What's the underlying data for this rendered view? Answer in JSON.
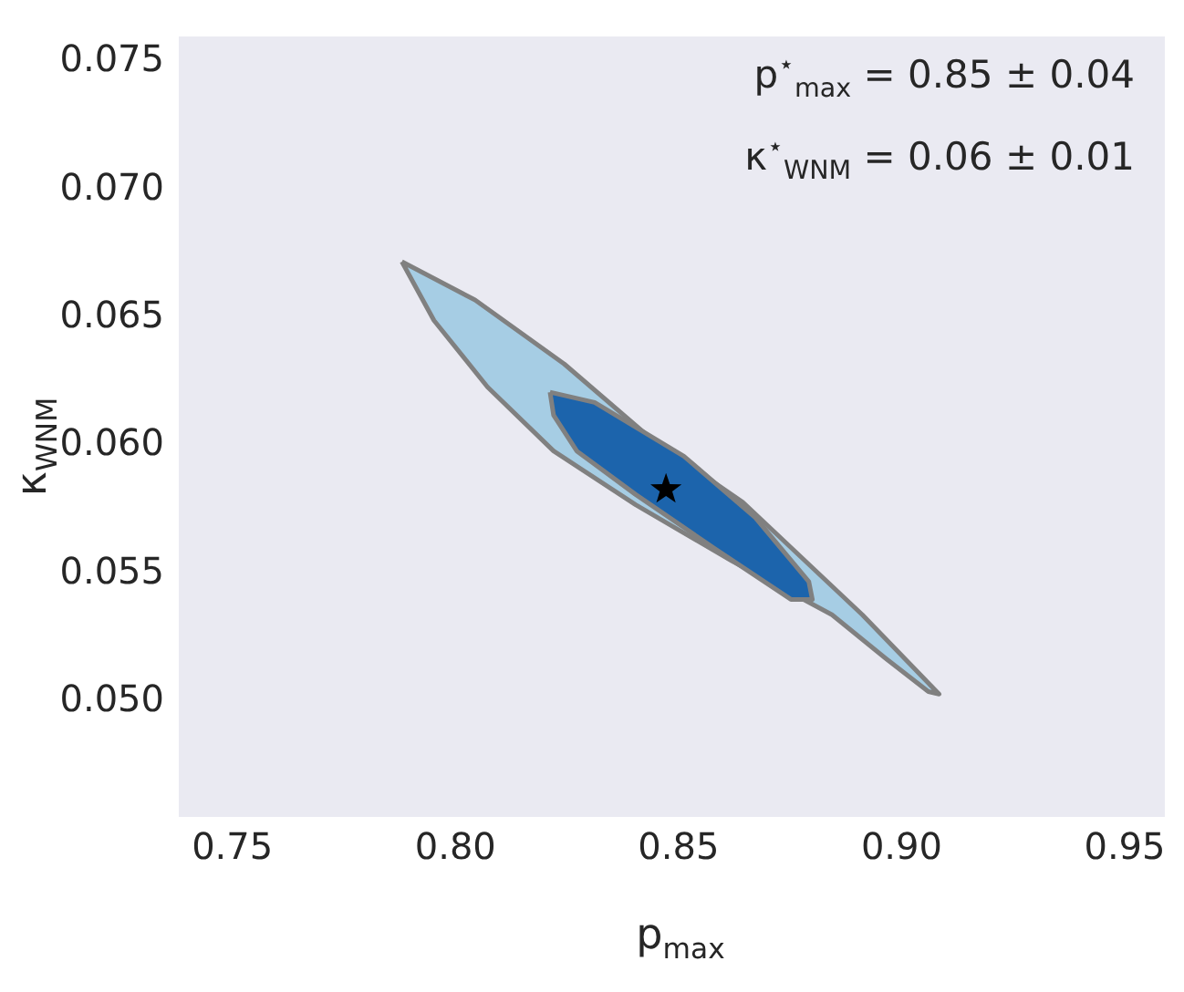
{
  "chart_data": {
    "type": "area",
    "xlabel": "p$_{max}$",
    "ylabel": "κ$_{WNM}$",
    "xlim": [
      0.738,
      0.959
    ],
    "ylim": [
      0.0455,
      0.076
    ],
    "xticks": [
      {
        "value": 0.75,
        "label": "0.75"
      },
      {
        "value": 0.8,
        "label": "0.80"
      },
      {
        "value": 0.85,
        "label": "0.85"
      },
      {
        "value": 0.9,
        "label": "0.90"
      },
      {
        "value": 0.95,
        "label": "0.95"
      }
    ],
    "yticks": [
      {
        "value": 0.05,
        "label": "0.050"
      },
      {
        "value": 0.055,
        "label": "0.055"
      },
      {
        "value": 0.06,
        "label": "0.060"
      },
      {
        "value": 0.065,
        "label": "0.065"
      },
      {
        "value": 0.07,
        "label": "0.070"
      },
      {
        "value": 0.075,
        "label": "0.075"
      }
    ],
    "grid": false,
    "legend": false,
    "annotations": [
      "p$^{⋆}$$_{max}$ = 0.85 ± 0.04",
      "κ$^{⋆}$$_{WNM}$ = 0.06 ± 0.01"
    ],
    "series": [
      {
        "color": "#a6cde4",
        "x": [
          0.788,
          0.8044,
          0.8244,
          0.8444,
          0.8644,
          0.8912,
          0.9084,
          0.906,
          0.8964,
          0.8844,
          0.862,
          0.8404,
          0.822,
          0.8072,
          0.7952
        ],
        "values": [
          0.0672,
          0.0657,
          0.0632,
          0.0602,
          0.0578,
          0.0534,
          0.0503,
          0.0504,
          0.0517,
          0.0534,
          0.0555,
          0.0577,
          0.0598,
          0.0623,
          0.0649
        ]
      },
      {
        "color": "#1c64ac",
        "x": [
          0.8212,
          0.8312,
          0.8512,
          0.8672,
          0.8792,
          0.88,
          0.8752,
          0.858,
          0.8404,
          0.8272,
          0.822
        ],
        "values": [
          0.0621,
          0.0617,
          0.0596,
          0.0572,
          0.0547,
          0.054,
          0.054,
          0.056,
          0.0581,
          0.0598,
          0.0612
        ]
      },
      {
        "type": "scatter",
        "marker": "star",
        "color": "#000000",
        "x": [
          0.8472
        ],
        "values": [
          0.0583
        ]
      }
    ]
  }
}
